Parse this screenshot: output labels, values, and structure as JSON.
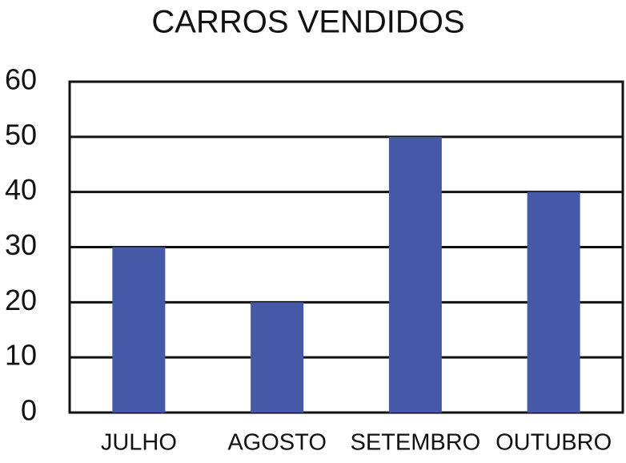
{
  "chart_data": {
    "type": "bar",
    "title": "CARROS VENDIDOS",
    "categories": [
      "JULHO",
      "AGOSTO",
      "SETEMBRO",
      "OUTUBRO"
    ],
    "values": [
      30,
      20,
      50,
      40
    ],
    "color": "#4659a6",
    "ylim": [
      0,
      60
    ],
    "yticks": [
      0,
      10,
      20,
      30,
      40,
      50,
      60
    ],
    "grid": true
  }
}
